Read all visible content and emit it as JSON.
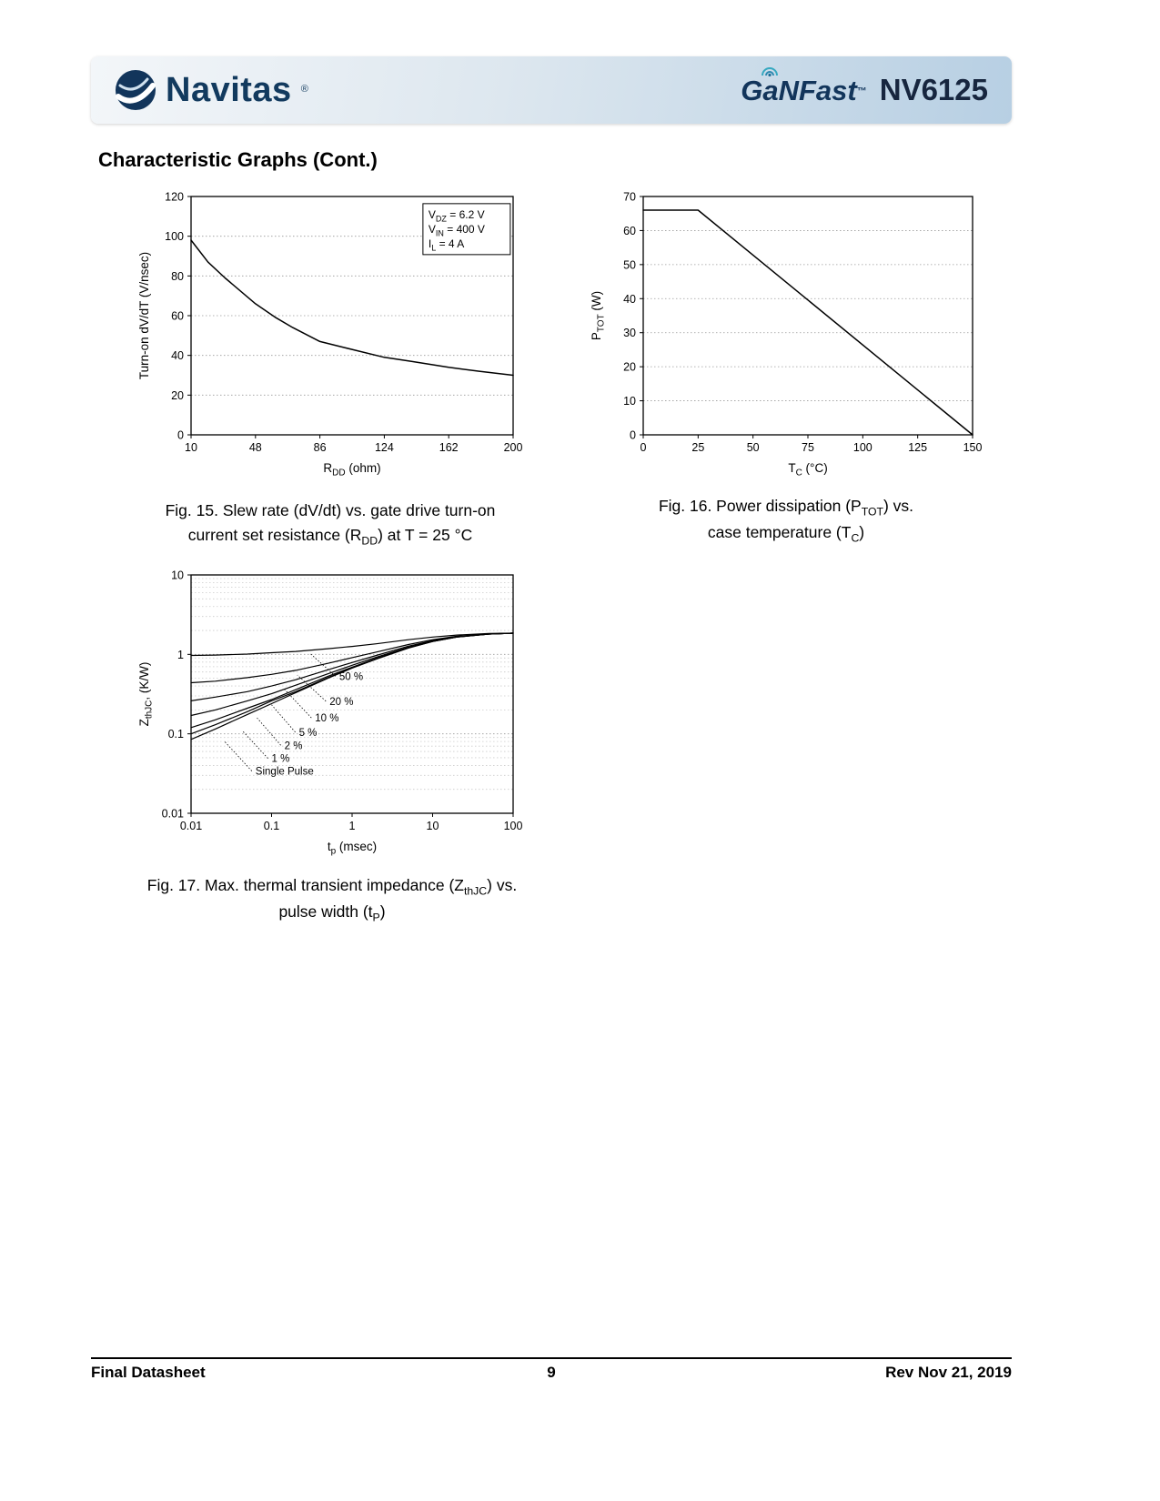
{
  "header": {
    "brand": "Navitas",
    "brand_reg": "®",
    "product": "GaNFast",
    "product_tm": "™",
    "part": "NV6125"
  },
  "section_title": "Characteristic Graphs (Cont.)",
  "footer": {
    "left": "Final Datasheet",
    "page": "9",
    "right": "Rev Nov 21, 2019"
  },
  "colors": {
    "navy": "#123a5e",
    "band_start": "#f3f6f9",
    "band_end": "#b7cfe3",
    "line": "#000000",
    "grid_major": "#9a9a9a",
    "grid_minor": "#cccccc"
  },
  "chart_data": [
    {
      "id": "fig15",
      "type": "line",
      "xlabel": [
        {
          "t": "R"
        },
        {
          "t": "DD",
          "sub": true
        },
        {
          "t": " (ohm)"
        }
      ],
      "ylabel": [
        {
          "t": "Turn-on dV/dT  (V/nsec)"
        }
      ],
      "xlim": [
        10,
        200
      ],
      "ylim": [
        0,
        120
      ],
      "xticks": [
        10,
        48,
        86,
        124,
        162,
        200
      ],
      "yticks": [
        0,
        20,
        40,
        60,
        80,
        100,
        120
      ],
      "grid": "horizontal-dotted",
      "annotation": {
        "fx": 0.72,
        "fy": 0.03,
        "w": 96,
        "lines": [
          [
            {
              "t": "V"
            },
            {
              "t": "DZ",
              "sub": true
            },
            {
              "t": " = 6.2 V"
            }
          ],
          [
            {
              "t": "V"
            },
            {
              "t": "IN",
              "sub": true
            },
            {
              "t": " = 400 V"
            }
          ],
          [
            {
              "t": "I"
            },
            {
              "t": "L",
              "sub": true
            },
            {
              "t": " = 4 A"
            }
          ]
        ]
      },
      "series": [
        {
          "name": "slew-rate",
          "x": [
            10,
            20,
            30,
            48,
            60,
            70,
            86,
            100,
            124,
            140,
            162,
            180,
            200
          ],
          "y": [
            98,
            87,
            79,
            66,
            59,
            54,
            47,
            44,
            39,
            37,
            34,
            32,
            30
          ]
        }
      ],
      "caption_lines": [
        [
          {
            "t": "Fig. 15. Slew rate (dV/dt) vs. gate drive turn-on"
          }
        ],
        [
          {
            "t": "current set resistance (R"
          },
          {
            "t": "DD",
            "sub": true
          },
          {
            "t": ") at T = 25 °C"
          }
        ]
      ]
    },
    {
      "id": "fig16",
      "type": "line",
      "xlabel": [
        {
          "t": "T"
        },
        {
          "t": "C",
          "sub": true
        },
        {
          "t": " (°C)"
        }
      ],
      "ylabel": [
        {
          "t": "P"
        },
        {
          "t": "TOT",
          "sub": true
        },
        {
          "t": " (W)"
        }
      ],
      "xlim": [
        0,
        150
      ],
      "ylim": [
        0,
        70
      ],
      "xticks": [
        0,
        25,
        50,
        75,
        100,
        125,
        150
      ],
      "yticks": [
        0,
        10,
        20,
        30,
        40,
        50,
        60,
        70
      ],
      "grid": "horizontal-dotted",
      "series": [
        {
          "name": "power-dissipation",
          "x": [
            0,
            25,
            150
          ],
          "y": [
            66,
            66,
            0
          ]
        }
      ],
      "caption_lines": [
        [
          {
            "t": "Fig. 16. Power dissipation (P"
          },
          {
            "t": "TOT",
            "sub": true
          },
          {
            "t": ") vs."
          }
        ],
        [
          {
            "t": "case temperature (T"
          },
          {
            "t": "C",
            "sub": true
          },
          {
            "t": ")"
          }
        ]
      ]
    },
    {
      "id": "fig17",
      "type": "line",
      "xscale": "log",
      "yscale": "log",
      "xlabel": [
        {
          "t": "t"
        },
        {
          "t": "p",
          "sub": true
        },
        {
          "t": " (msec)"
        }
      ],
      "ylabel": [
        {
          "t": "Z"
        },
        {
          "t": "thJC",
          "sub": true
        },
        {
          "t": ", (K/W)"
        }
      ],
      "xlim": [
        0.01,
        100
      ],
      "ylim": [
        0.01,
        10
      ],
      "xticks": [
        0.01,
        0.1,
        1,
        10,
        100
      ],
      "yticks": [
        0.01,
        0.1,
        1,
        10
      ],
      "grid": "log-horizontal-dotted",
      "series": [
        {
          "name": "50 %",
          "w": 1.2,
          "x": [
            0.01,
            0.02,
            0.05,
            0.1,
            0.2,
            0.5,
            1,
            2,
            5,
            10,
            20,
            50,
            100
          ],
          "y": [
            0.97,
            0.98,
            1.01,
            1.05,
            1.09,
            1.18,
            1.26,
            1.36,
            1.53,
            1.65,
            1.75,
            1.83,
            1.85
          ]
        },
        {
          "name": "20 %",
          "w": 1.2,
          "x": [
            0.01,
            0.02,
            0.05,
            0.1,
            0.2,
            0.5,
            1,
            2,
            5,
            10,
            20,
            50,
            100
          ],
          "y": [
            0.44,
            0.46,
            0.51,
            0.56,
            0.63,
            0.77,
            0.91,
            1.07,
            1.33,
            1.53,
            1.69,
            1.81,
            1.85
          ]
        },
        {
          "name": "10 %",
          "w": 1.2,
          "x": [
            0.01,
            0.02,
            0.05,
            0.1,
            0.2,
            0.5,
            1,
            2,
            5,
            10,
            20,
            50,
            100
          ],
          "y": [
            0.26,
            0.29,
            0.34,
            0.4,
            0.48,
            0.64,
            0.79,
            0.97,
            1.27,
            1.49,
            1.67,
            1.8,
            1.85
          ]
        },
        {
          "name": "5 %",
          "w": 1.2,
          "x": [
            0.01,
            0.02,
            0.05,
            0.1,
            0.2,
            0.5,
            1,
            2,
            5,
            10,
            20,
            50,
            100
          ],
          "y": [
            0.17,
            0.2,
            0.26,
            0.32,
            0.41,
            0.57,
            0.73,
            0.92,
            1.23,
            1.47,
            1.66,
            1.8,
            1.85
          ]
        },
        {
          "name": "2 %",
          "w": 1.2,
          "x": [
            0.01,
            0.02,
            0.05,
            0.1,
            0.2,
            0.5,
            1,
            2,
            5,
            10,
            20,
            50,
            100
          ],
          "y": [
            0.12,
            0.15,
            0.21,
            0.27,
            0.36,
            0.53,
            0.69,
            0.89,
            1.21,
            1.46,
            1.65,
            1.8,
            1.85
          ]
        },
        {
          "name": "1 %",
          "w": 1.2,
          "x": [
            0.01,
            0.02,
            0.05,
            0.1,
            0.2,
            0.5,
            1,
            2,
            5,
            10,
            20,
            50,
            100
          ],
          "y": [
            0.1,
            0.13,
            0.19,
            0.26,
            0.34,
            0.51,
            0.68,
            0.88,
            1.21,
            1.45,
            1.65,
            1.8,
            1.85
          ]
        },
        {
          "name": "Single Pulse",
          "w": 1.2,
          "x": [
            0.01,
            0.02,
            0.05,
            0.1,
            0.2,
            0.5,
            1,
            2,
            5,
            10,
            20,
            50,
            100
          ],
          "y": [
            0.085,
            0.115,
            0.175,
            0.24,
            0.33,
            0.5,
            0.67,
            0.87,
            1.2,
            1.45,
            1.65,
            1.8,
            1.85
          ]
        }
      ],
      "curve_labels": [
        {
          "text": "50 %",
          "fx": 0.46,
          "fy": 0.44,
          "leader_to": [
            0.37,
            0.33
          ]
        },
        {
          "text": "20 %",
          "fx": 0.43,
          "fy": 0.545,
          "leader_to": [
            0.33,
            0.42
          ]
        },
        {
          "text": "10 %",
          "fx": 0.385,
          "fy": 0.615,
          "leader_to": [
            0.29,
            0.48
          ]
        },
        {
          "text": "5 %",
          "fx": 0.335,
          "fy": 0.675,
          "leader_to": [
            0.25,
            0.545
          ]
        },
        {
          "text": "2 %",
          "fx": 0.29,
          "fy": 0.73,
          "leader_to": [
            0.205,
            0.6
          ]
        },
        {
          "text": "1 %",
          "fx": 0.25,
          "fy": 0.785,
          "leader_to": [
            0.16,
            0.655
          ]
        },
        {
          "text": "Single Pulse",
          "fx": 0.2,
          "fy": 0.838,
          "leader_to": [
            0.105,
            0.7
          ]
        }
      ],
      "caption_lines": [
        [
          {
            "t": "Fig. 17. Max. thermal transient impedance (Z"
          },
          {
            "t": "thJC",
            "sub": true
          },
          {
            "t": ") vs."
          }
        ],
        [
          {
            "t": "pulse width (t"
          },
          {
            "t": "P",
            "sub": true
          },
          {
            "t": ")"
          }
        ]
      ]
    }
  ]
}
